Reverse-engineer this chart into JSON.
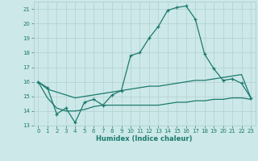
{
  "title": "",
  "xlabel": "Humidex (Indice chaleur)",
  "bg_color": "#cde8e8",
  "grid_color": "#b0d0d0",
  "line_color": "#1a7a6e",
  "xlim": [
    -0.5,
    23.5
  ],
  "ylim": [
    13,
    21.5
  ],
  "yticks": [
    13,
    14,
    15,
    16,
    17,
    18,
    19,
    20,
    21
  ],
  "xticks": [
    0,
    1,
    2,
    3,
    4,
    5,
    6,
    7,
    8,
    9,
    10,
    11,
    12,
    13,
    14,
    15,
    16,
    17,
    18,
    19,
    20,
    21,
    22,
    23
  ],
  "line1_x": [
    0,
    1,
    2,
    3,
    4,
    5,
    6,
    7,
    8,
    9,
    10,
    11,
    12,
    13,
    14,
    15,
    16,
    17,
    18,
    19,
    20,
    21,
    22,
    23
  ],
  "line1_y": [
    16.0,
    15.6,
    13.8,
    14.2,
    13.2,
    14.6,
    14.8,
    14.4,
    15.1,
    15.4,
    17.8,
    18.0,
    19.0,
    19.8,
    20.9,
    21.1,
    21.2,
    20.3,
    17.9,
    16.9,
    16.1,
    16.2,
    15.9,
    14.9
  ],
  "line2_x": [
    0,
    1,
    2,
    3,
    4,
    5,
    6,
    7,
    8,
    9,
    10,
    11,
    12,
    13,
    14,
    15,
    16,
    17,
    18,
    19,
    20,
    21,
    22,
    23
  ],
  "line2_y": [
    16.0,
    15.5,
    15.3,
    15.1,
    14.9,
    15.0,
    15.1,
    15.2,
    15.3,
    15.4,
    15.5,
    15.6,
    15.7,
    15.7,
    15.8,
    15.9,
    16.0,
    16.1,
    16.1,
    16.2,
    16.3,
    16.4,
    16.5,
    14.9
  ],
  "line3_x": [
    0,
    1,
    2,
    3,
    4,
    5,
    6,
    7,
    8,
    9,
    10,
    11,
    12,
    13,
    14,
    15,
    16,
    17,
    18,
    19,
    20,
    21,
    22,
    23
  ],
  "line3_y": [
    16.0,
    14.9,
    14.2,
    14.0,
    14.0,
    14.1,
    14.3,
    14.4,
    14.4,
    14.4,
    14.4,
    14.4,
    14.4,
    14.4,
    14.5,
    14.6,
    14.6,
    14.7,
    14.7,
    14.8,
    14.8,
    14.9,
    14.9,
    14.8
  ]
}
